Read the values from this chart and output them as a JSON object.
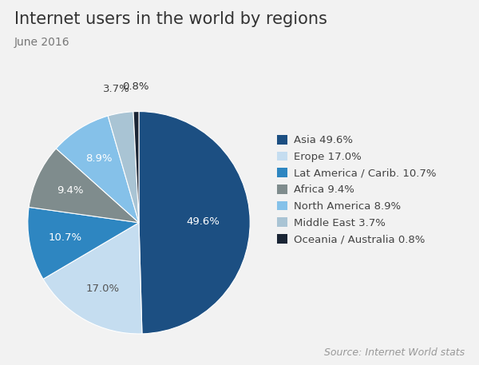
{
  "title": "Internet users in the world by regions",
  "subtitle": "June 2016",
  "source": "Source: Internet World stats",
  "labels": [
    "Asia",
    "Erope",
    "Lat America / Carib.",
    "Africa",
    "North America",
    "Middle East",
    "Oceania / Australia"
  ],
  "values": [
    49.6,
    17.0,
    10.7,
    9.4,
    8.9,
    3.7,
    0.8
  ],
  "colors": [
    "#1c4f82",
    "#c5ddf0",
    "#2e86c1",
    "#7f8c8d",
    "#85c1e9",
    "#a9c4d4",
    "#1a2535"
  ],
  "legend_labels": [
    "Asia 49.6%",
    "Erope 17.0%",
    "Lat America / Carib. 10.7%",
    "Africa 9.4%",
    "North America 8.9%",
    "Middle East 3.7%",
    "Oceania / Australia 0.8%"
  ],
  "pct_labels": [
    "49.6%",
    "17.0%",
    "10.7%",
    "9.4%",
    "8.9%",
    "3.7%",
    "0.8%"
  ],
  "background_color": "#f2f2f2",
  "title_fontsize": 15,
  "subtitle_fontsize": 10,
  "source_fontsize": 9,
  "legend_fontsize": 9.5
}
